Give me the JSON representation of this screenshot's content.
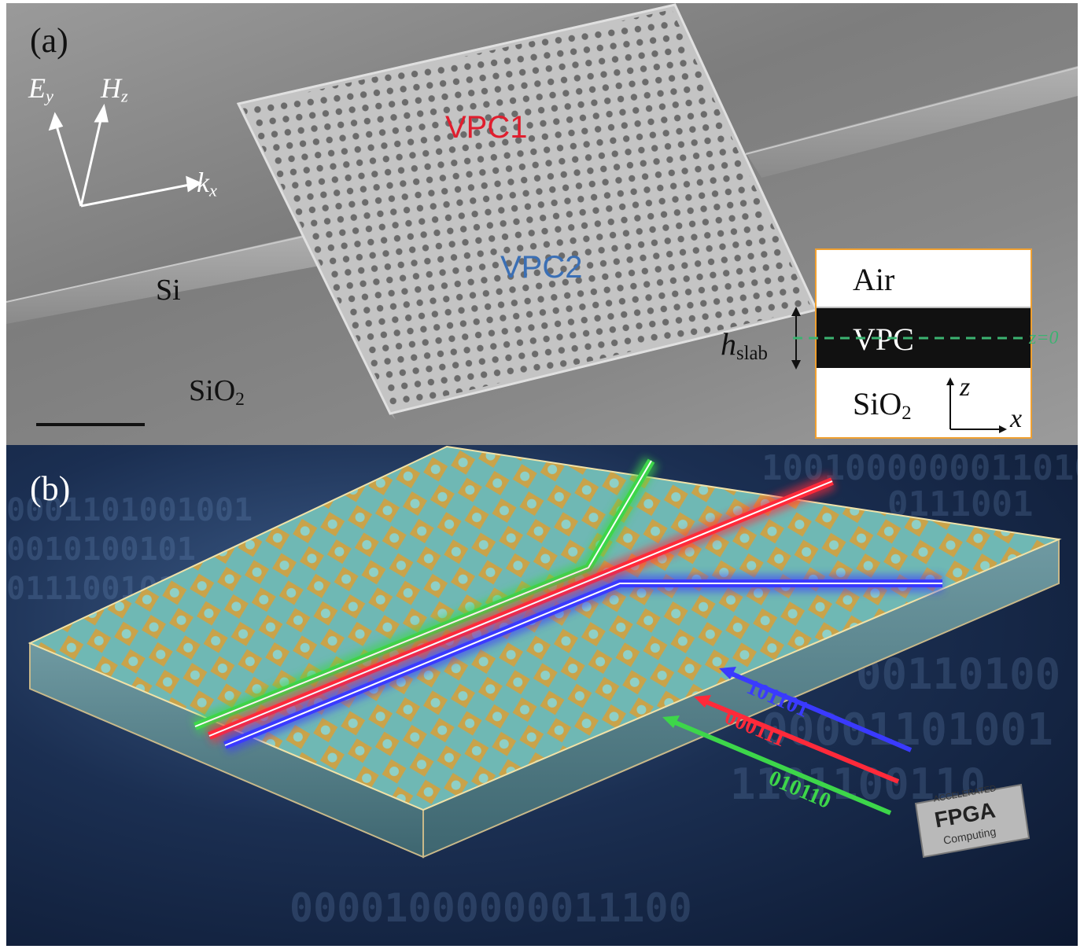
{
  "panel_a": {
    "label": "(a)",
    "axis_e": "E",
    "axis_e_sub": "y",
    "axis_h": "H",
    "axis_h_sub": "z",
    "axis_k": "k",
    "axis_k_sub": "x",
    "vpc1": "VPC1",
    "vpc2": "VPC2",
    "si": "Si",
    "sio2": "SiO",
    "sio2_sub": "2",
    "colors": {
      "vpc1": "#e01e2e",
      "vpc2": "#3a6fb5",
      "inset_border": "#f0a030",
      "z0_line": "#3cb371"
    },
    "inset": {
      "air": "Air",
      "vpc": "VPC",
      "sio2": "SiO",
      "sio2_sub": "2",
      "z_axis": "z",
      "x_axis": "x",
      "z0": "z=0",
      "h": "h",
      "h_sub": "slab"
    }
  },
  "panel_b": {
    "label": "(b)",
    "bits_blue": "101101",
    "bits_red": "000111",
    "bits_green": "010110",
    "chip_line1": "ACCELERATED",
    "chip_line2": "FPGA",
    "chip_line3": "Computing",
    "colors": {
      "green": "#3dd64a",
      "red": "#ff2a3a",
      "blue": "#3a3aff"
    }
  }
}
